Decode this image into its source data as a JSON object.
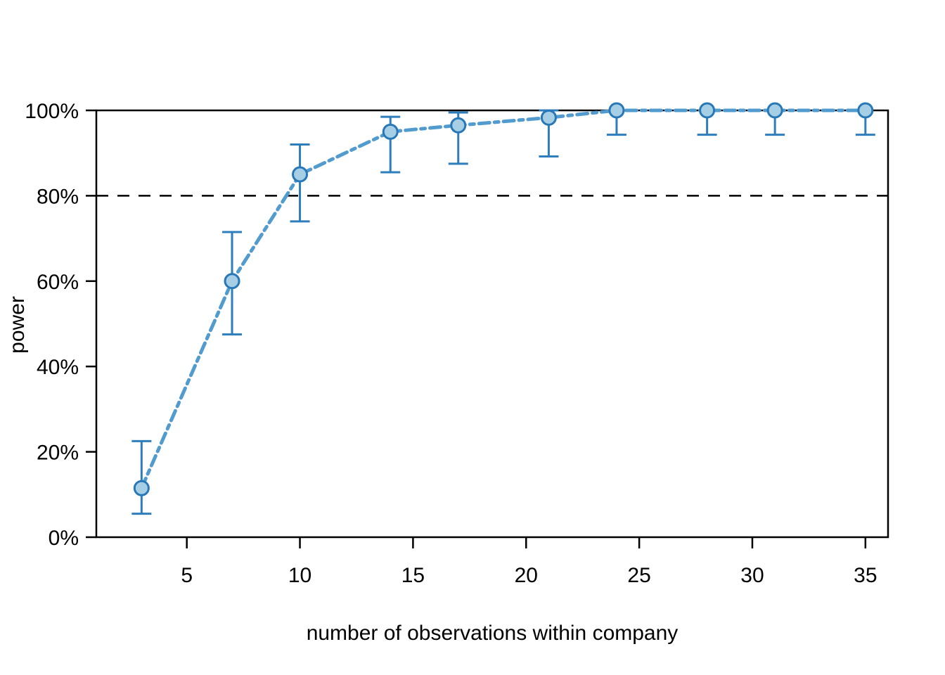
{
  "chart_data": {
    "type": "line",
    "title": "",
    "xlabel": "number of observations within company",
    "ylabel": "power",
    "x": [
      3,
      7,
      10,
      14,
      17,
      21,
      24,
      28,
      31,
      35
    ],
    "series": [
      {
        "name": "power",
        "values": [
          11.5,
          60.0,
          85.0,
          95.0,
          96.5,
          98.3,
          100,
          100,
          100,
          100
        ]
      },
      {
        "name": "ci_lower",
        "values": [
          5.5,
          47.5,
          74.0,
          85.5,
          87.5,
          89.2,
          94.3,
          94.3,
          94.3,
          94.3
        ]
      },
      {
        "name": "ci_upper",
        "values": [
          22.5,
          71.5,
          92.0,
          98.5,
          99.5,
          100,
          100,
          100,
          100,
          100
        ]
      }
    ],
    "x_ticks": {
      "values": [
        5,
        10,
        15,
        20,
        25,
        30,
        35
      ],
      "labels": [
        "5",
        "10",
        "15",
        "20",
        "25",
        "30",
        "35"
      ]
    },
    "y_ticks": {
      "values": [
        0,
        20,
        40,
        60,
        80,
        100
      ],
      "labels": [
        "0%",
        "20%",
        "40%",
        "60%",
        "80%",
        "100%"
      ]
    },
    "xlim": [
      1,
      36
    ],
    "ylim": [
      0,
      100
    ],
    "reference_line": {
      "y": 80,
      "style": "dashed",
      "color": "#000000"
    },
    "line_style": "dash-dot",
    "marker": "circle",
    "error_bars": true,
    "grid": false,
    "colors": {
      "line": "#529bce",
      "marker_fill": "#a6cee4",
      "marker_stroke": "#2878b8",
      "error_bar": "#2e7ebc",
      "axis": "#000000",
      "background": "#ffffff"
    }
  }
}
